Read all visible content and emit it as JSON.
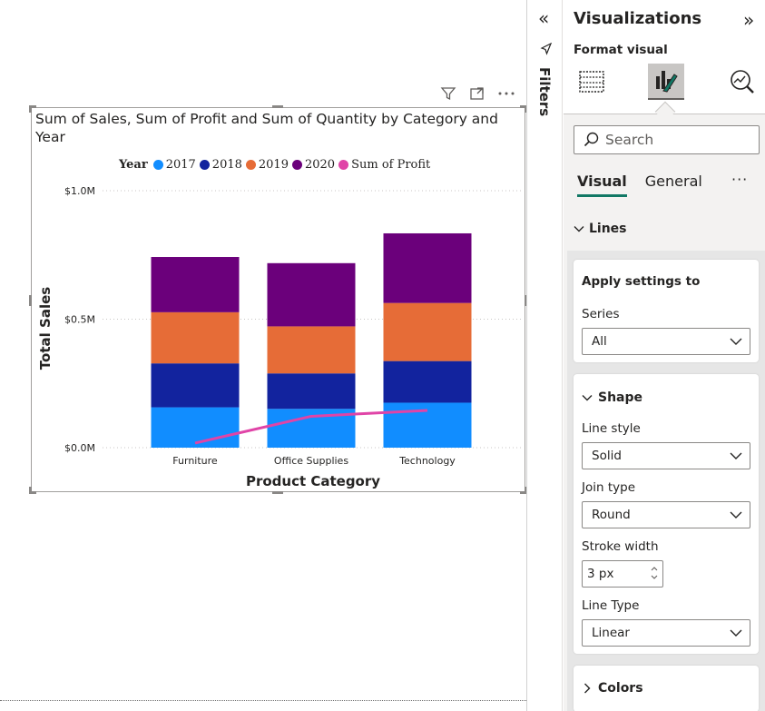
{
  "visual_header": {
    "filter_icon": "funnel-icon",
    "focus_icon": "focus-mode-icon",
    "more_icon": "more-options-icon"
  },
  "chart": {
    "title": "Sum of Sales, Sum of Profit and Sum of Quantity by Category and Year",
    "legend": {
      "title": "Year",
      "items": [
        {
          "label": "2017",
          "color": "#118dff"
        },
        {
          "label": "2018",
          "color": "#12239e"
        },
        {
          "label": "2019",
          "color": "#e66c37"
        },
        {
          "label": "2020",
          "color": "#6b007b"
        },
        {
          "label": "Sum of Profit",
          "color": "#e044a7"
        }
      ]
    }
  },
  "chart_data": {
    "type": "bar",
    "stacked": true,
    "categories": [
      "Furniture",
      "Office Supplies",
      "Technology"
    ],
    "series": [
      {
        "name": "2017",
        "color": "#118dff",
        "values": [
          157000,
          151000,
          175000
        ]
      },
      {
        "name": "2018",
        "color": "#12239e",
        "values": [
          171000,
          138000,
          162000
        ]
      },
      {
        "name": "2019",
        "color": "#e66c37",
        "values": [
          199000,
          183000,
          226000
        ]
      },
      {
        "name": "2020",
        "color": "#6b007b",
        "values": [
          215000,
          246000,
          271000
        ]
      }
    ],
    "line_series": {
      "name": "Sum of Profit",
      "color": "#e044a7",
      "values": [
        18000,
        122000,
        145000
      ]
    },
    "xlabel": "Product Category",
    "ylabel": "Total Sales",
    "ylim": [
      0,
      1000000
    ],
    "yticks": [
      {
        "value": 0,
        "label": "$0.0M"
      },
      {
        "value": 500000,
        "label": "$0.5M"
      },
      {
        "value": 1000000,
        "label": "$1.0M"
      }
    ],
    "grid": true,
    "legend_position": "top-left"
  },
  "filters": {
    "label": "Filters",
    "collapse_icon": "double-chevron-left-icon"
  },
  "pane": {
    "title": "Visualizations",
    "expand_icon": "double-chevron-right-icon",
    "subtitle": "Format visual",
    "search_placeholder": "Search",
    "tabs": [
      "Visual",
      "General"
    ],
    "more": "···",
    "lines_section": "Lines",
    "apply_card": {
      "title": "Apply settings to",
      "series_label": "Series",
      "series_value": "All"
    },
    "shape_card": {
      "title": "Shape",
      "line_style_label": "Line style",
      "line_style_value": "Solid",
      "join_type_label": "Join type",
      "join_type_value": "Round",
      "stroke_width_label": "Stroke width",
      "stroke_width_value": "3 px",
      "line_type_label": "Line Type",
      "line_type_value": "Linear"
    },
    "colors_section": "Colors"
  }
}
